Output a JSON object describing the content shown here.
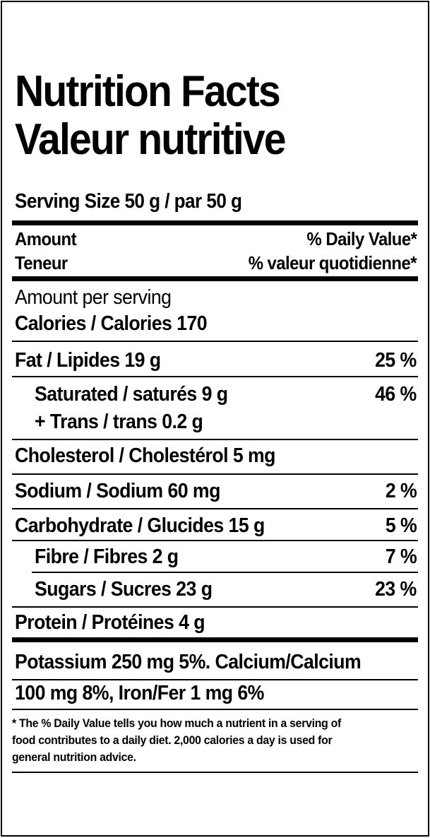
{
  "title": {
    "line1": "Nutrition Facts",
    "line2": "Valeur nutritive"
  },
  "serving": "Serving Size 50 g / par 50 g",
  "header": {
    "amount_en": "Amount",
    "amount_fr": "Teneur",
    "dv_en": "% Daily Value*",
    "dv_fr": "% valeur quotidienne*"
  },
  "calories": {
    "per_serving": "Amount per serving",
    "label": "Calories / Calories 170"
  },
  "nutrients": [
    {
      "label": "Fat / Lipides 19 g",
      "dv": "25 %"
    },
    {
      "label": "Saturated / saturés 9 g",
      "dv": "46 %"
    },
    {
      "label": "+ Trans / trans 0.2 g",
      "dv": ""
    },
    {
      "label": "Cholesterol / Cholestérol 5 mg",
      "dv": ""
    },
    {
      "label": "Sodium / Sodium 60 mg",
      "dv": "2 %"
    },
    {
      "label": "Carbohydrate / Glucides 15 g",
      "dv": "5 %"
    },
    {
      "label": "Fibre / Fibres 2 g",
      "dv": "7 %"
    },
    {
      "label": "Sugars / Sucres 23 g",
      "dv": "23 %"
    },
    {
      "label": "Protein / Protéines 4 g",
      "dv": ""
    }
  ],
  "minerals": {
    "line1": "Potassium 250 mg 5%. Calcium/Calcium",
    "line2": "100 mg 8%, Iron/Fer 1 mg 6%"
  },
  "footnote": {
    "line1": "* The % Daily Value tells you how much a nutrient in a serving of",
    "line2": "food contributes to a daily diet. 2,000 calories a day is used for",
    "line3": "general nutrition advice."
  }
}
